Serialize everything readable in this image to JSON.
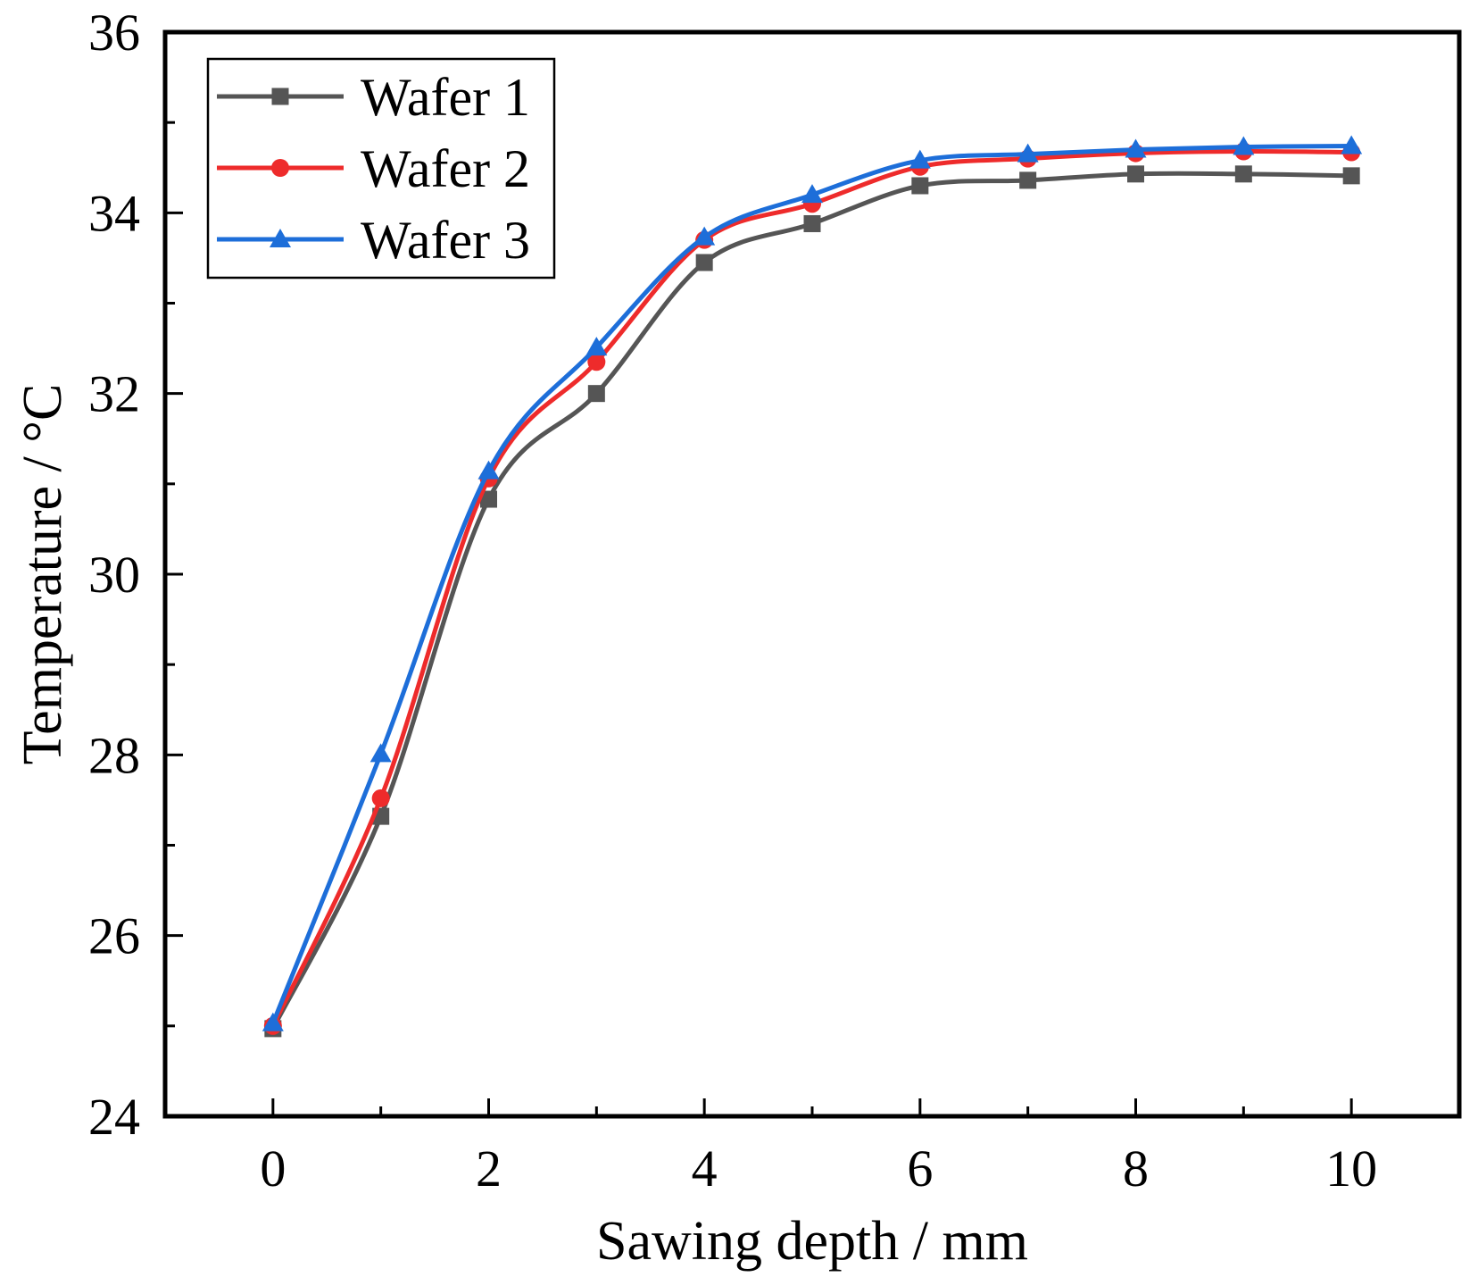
{
  "chart_data": {
    "type": "line",
    "title": "",
    "xlabel": "Sawing depth / mm",
    "ylabel": "Temperature / °C",
    "xlim": [
      -1,
      11
    ],
    "ylim": [
      24,
      36
    ],
    "xticks": [
      0,
      2,
      4,
      6,
      8,
      10
    ],
    "yticks": [
      24,
      26,
      28,
      30,
      32,
      34,
      36
    ],
    "xtick_labels": [
      "0",
      "2",
      "4",
      "6",
      "8",
      "10"
    ],
    "ytick_labels": [
      "24",
      "26",
      "28",
      "30",
      "32",
      "34",
      "36"
    ],
    "x_minor_ticks": [
      1,
      3,
      5,
      7,
      9
    ],
    "y_minor_ticks": [
      25,
      27,
      29,
      31,
      33,
      35
    ],
    "legend_position": "top-left",
    "grid": false,
    "x": [
      0,
      1,
      2,
      3,
      4,
      5,
      6,
      7,
      8,
      9,
      10
    ],
    "series": [
      {
        "name": "Wafer 1",
        "label": "Wafer 1",
        "color": "#555555",
        "marker": "square",
        "values": [
          24.97,
          27.32,
          30.83,
          32.0,
          33.45,
          33.88,
          34.3,
          34.36,
          34.43,
          34.43,
          34.41
        ]
      },
      {
        "name": "Wafer 2",
        "label": "Wafer 2",
        "color": "#ee2b2b",
        "marker": "circle",
        "values": [
          25.0,
          27.52,
          31.06,
          32.35,
          33.7,
          34.1,
          34.51,
          34.6,
          34.66,
          34.68,
          34.67
        ]
      },
      {
        "name": "Wafer 3",
        "label": "Wafer 3",
        "color": "#1d6ed9",
        "marker": "triangle",
        "values": [
          25.03,
          28.01,
          31.14,
          32.51,
          33.73,
          34.2,
          34.58,
          34.65,
          34.7,
          34.73,
          34.74
        ]
      }
    ]
  }
}
